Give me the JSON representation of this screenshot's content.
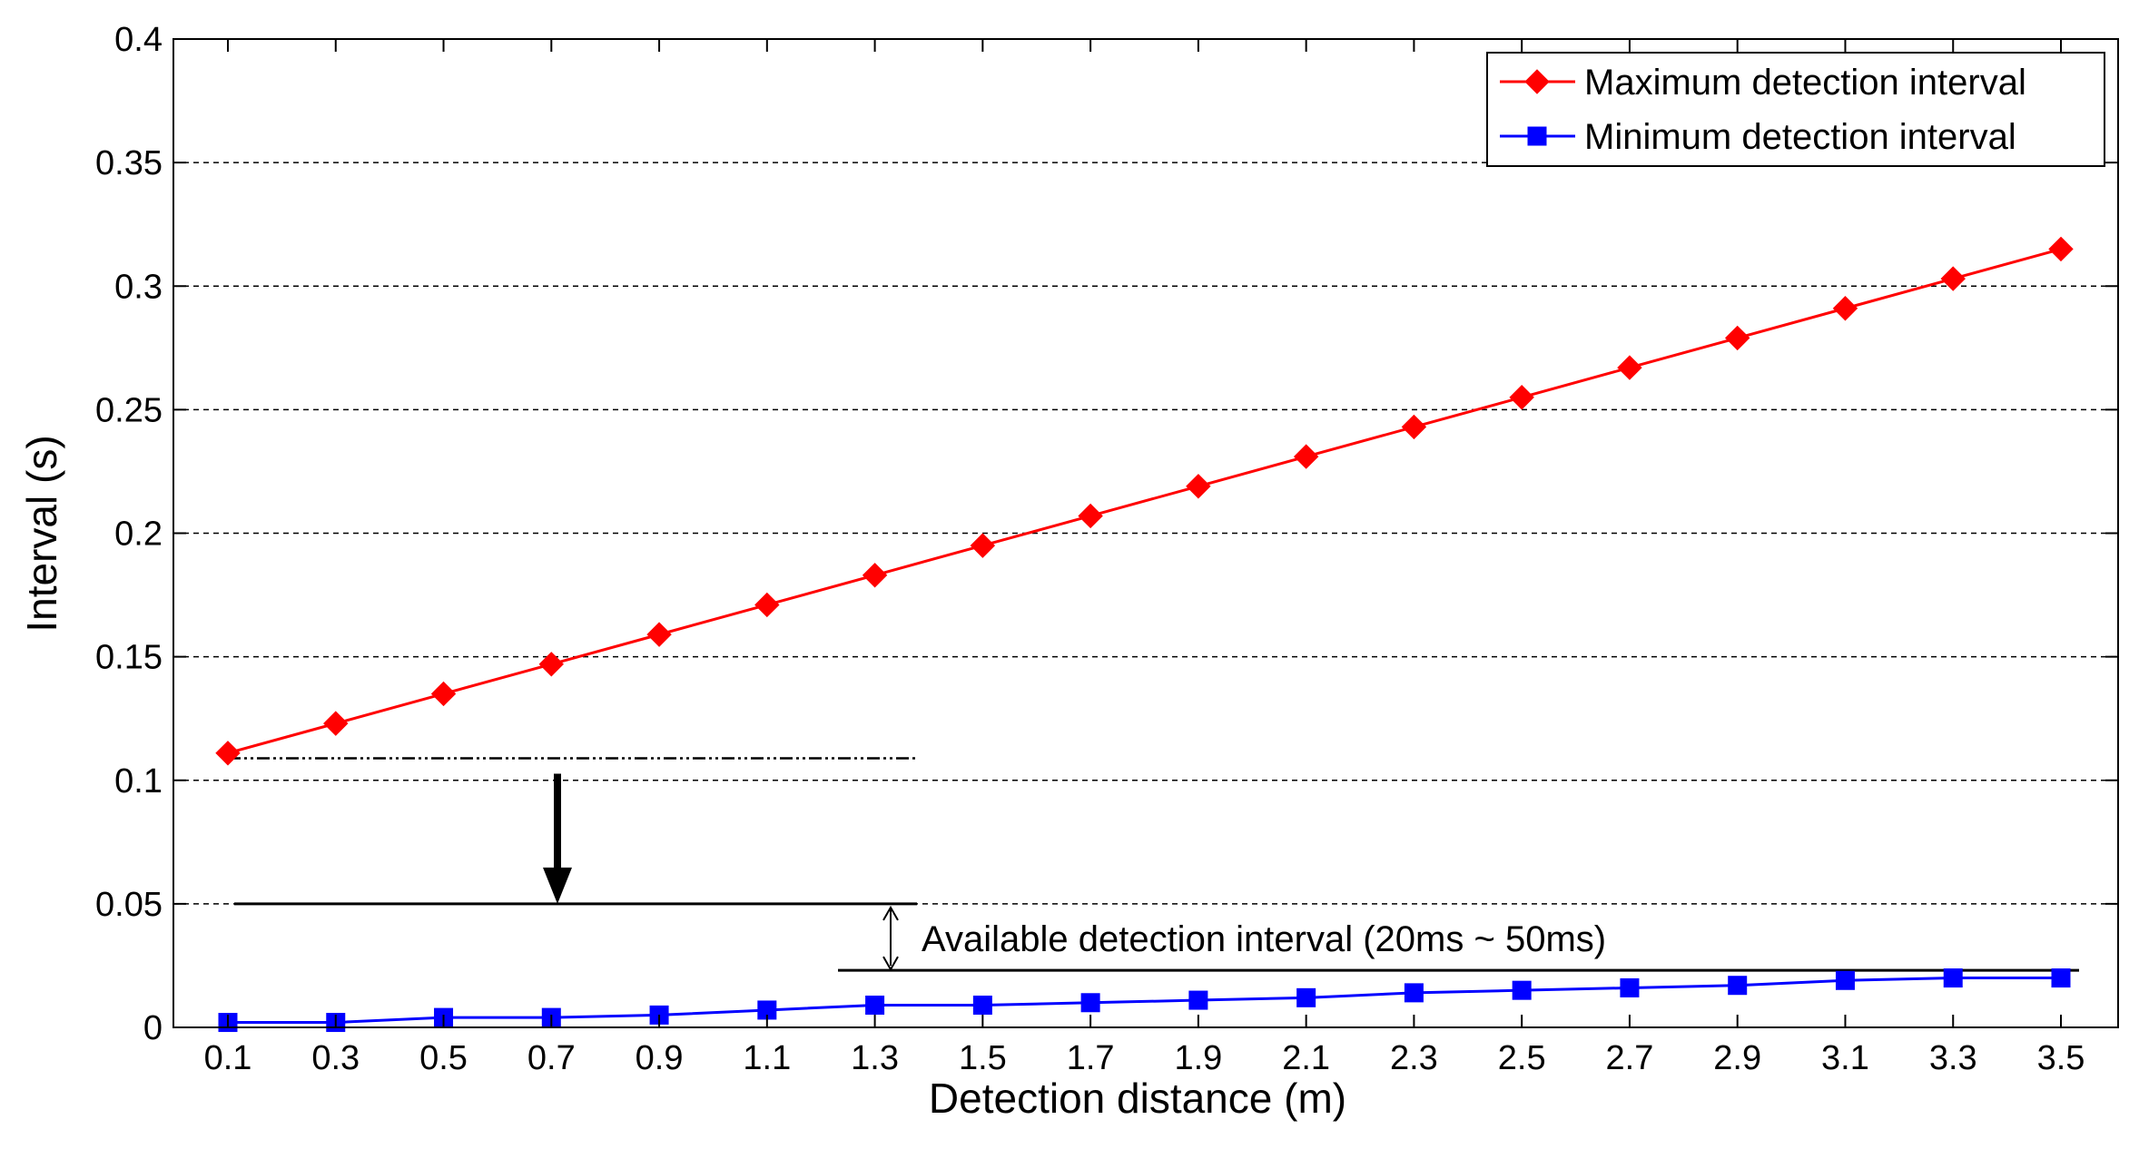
{
  "chart_data": {
    "type": "line",
    "title": "",
    "xlabel": "Detection distance (m)",
    "ylabel": "Interval (s)",
    "x": [
      0.1,
      0.3,
      0.5,
      0.7,
      0.9,
      1.1,
      1.3,
      1.5,
      1.7,
      1.9,
      2.1,
      2.3,
      2.5,
      2.7,
      2.9,
      3.1,
      3.3,
      3.5
    ],
    "x_tick_labels": [
      "0.1",
      "0.3",
      "0.5",
      "0.7",
      "0.9",
      "1.1",
      "1.3",
      "1.5",
      "1.7",
      "1.9",
      "2.1",
      "2.3",
      "2.5",
      "2.7",
      "2.9",
      "3.1",
      "3.3",
      "3.5"
    ],
    "xlim": [
      0.1,
      3.5
    ],
    "ylim": [
      0,
      0.4
    ],
    "y_ticks": [
      0,
      0.05,
      0.1,
      0.15,
      0.2,
      0.25,
      0.3,
      0.35,
      0.4
    ],
    "y_tick_labels": [
      "0",
      "0.05",
      "0.1",
      "0.15",
      "0.2",
      "0.25",
      "0.3",
      "0.35",
      "0.4"
    ],
    "grid": "horizontal dashed",
    "legend_position": "top-right",
    "series": [
      {
        "name": "Maximum detection interval",
        "color": "#ff0000",
        "marker": "diamond",
        "values": [
          0.111,
          0.123,
          0.135,
          0.147,
          0.159,
          0.171,
          0.183,
          0.195,
          0.207,
          0.219,
          0.231,
          0.243,
          0.255,
          0.267,
          0.279,
          0.291,
          0.303,
          0.315
        ]
      },
      {
        "name": "Minimum detection interval",
        "color": "#0000ff",
        "marker": "square",
        "values": [
          0.002,
          0.002,
          0.004,
          0.004,
          0.005,
          0.007,
          0.009,
          0.009,
          0.01,
          0.011,
          0.012,
          0.014,
          0.015,
          0.016,
          0.017,
          0.019,
          0.02,
          0.02
        ]
      }
    ],
    "annotations": {
      "text": "Available detection interval (20ms ~ 50ms)",
      "upper_bound": 0.05,
      "lower_bound": 0.022,
      "reference_level": 0.11
    }
  }
}
